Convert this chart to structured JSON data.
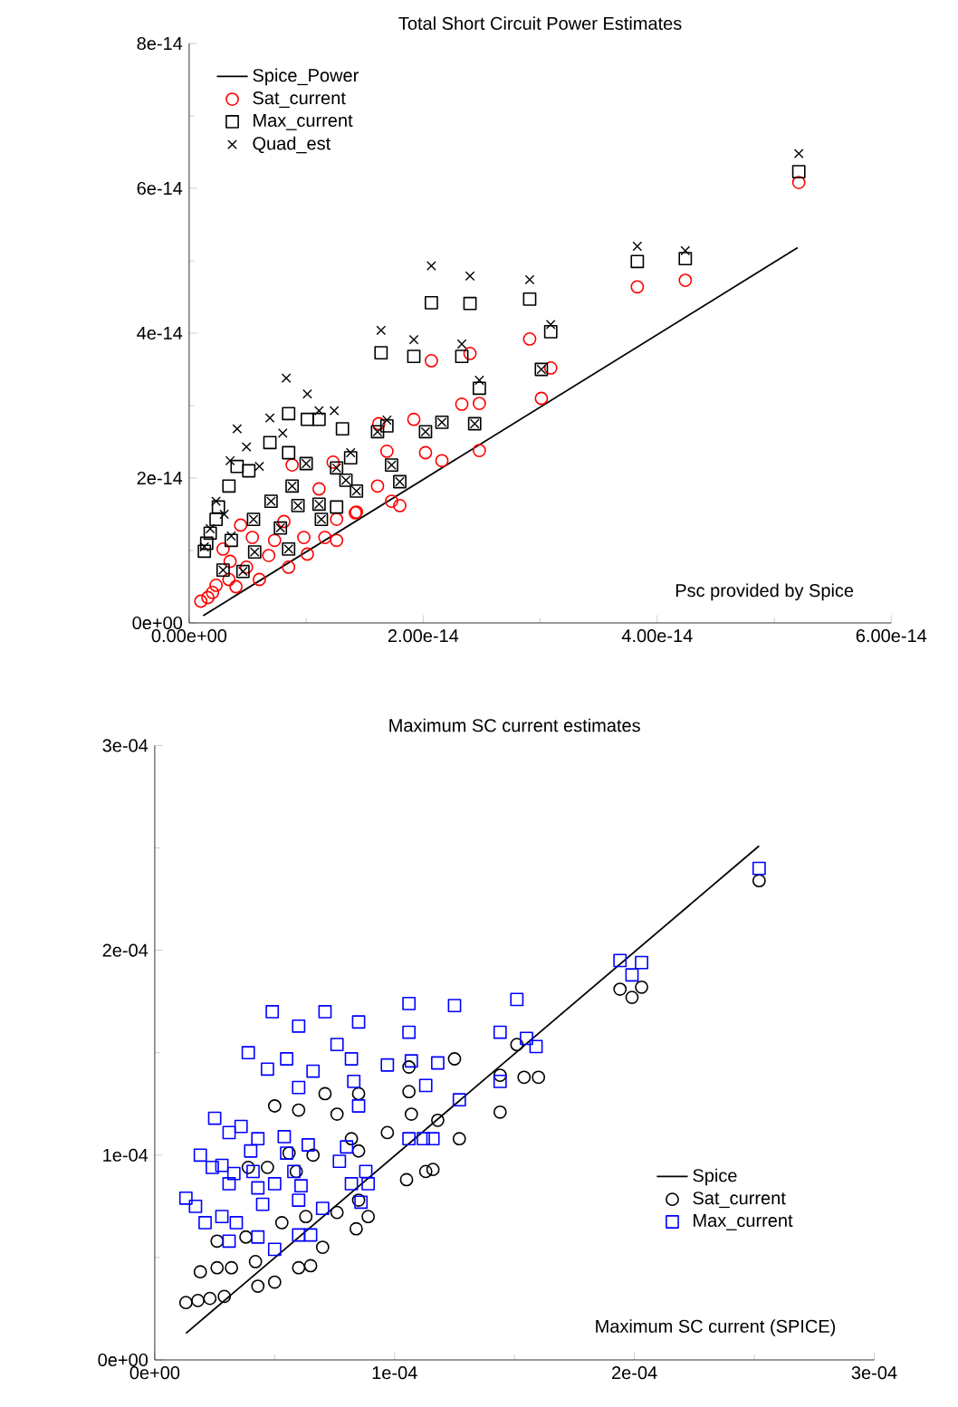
{
  "chart_data": [
    {
      "type": "scatter",
      "title": "Total Short Circuit Power Estimates",
      "xlabel": "Psc provided by Spice",
      "legend": "top left",
      "xlim": [
        0,
        6e-14
      ],
      "ylim": [
        0,
        8e-14
      ],
      "xticks": [
        {
          "value": 0,
          "label": "0.00e+00"
        },
        {
          "value": 2e-14,
          "label": "2.00e-14"
        },
        {
          "value": 4e-14,
          "label": "4.00e-14"
        },
        {
          "value": 6e-14,
          "label": "6.00e-14"
        }
      ],
      "yticks": [
        {
          "value": 0,
          "label": "0e+00"
        },
        {
          "value": 2e-14,
          "label": "2e-14"
        },
        {
          "value": 4e-14,
          "label": "4e-14"
        },
        {
          "value": 6e-14,
          "label": "6e-14"
        },
        {
          "value": 8e-14,
          "label": "8e-14"
        }
      ],
      "series": [
        {
          "name": "Spice_Power",
          "type": "line",
          "line_style": "solid",
          "marker": "none",
          "color": "#000000",
          "x": [
            1.2e-15,
            5.2e-14
          ],
          "values": [
            1e-15,
            5.18e-14
          ]
        },
        {
          "name": "Sat_current",
          "marker": "circle",
          "color": "#ff0000",
          "x": [
            5.21e-14,
            3.83e-14,
            4.24e-14,
            2.91e-14,
            3.09e-14,
            3.01e-14,
            2.07e-14,
            2.4e-14,
            2.33e-14,
            2.48e-14,
            2.48e-14,
            2.16e-14,
            2.02e-14,
            1.92e-14,
            1.69e-14,
            1.61e-14,
            1.73e-14,
            1.8e-14,
            1.23e-14,
            1.43e-14,
            1.62e-14,
            1.6e-15,
            2.3e-15,
            3.4e-15,
            4.9e-15,
            6.8e-15,
            8.5e-15,
            7.3e-15,
            9.8e-15,
            1.16e-14,
            1.26e-14,
            1.42e-14,
            1.11e-14,
            8.8e-15,
            4.4e-15,
            2.9e-15,
            5.4e-15,
            1e-15,
            2e-15,
            4e-15,
            6e-15,
            1.01e-14,
            8.1e-15,
            3.5e-15,
            1.26e-14
          ],
          "values": [
            6.08e-14,
            4.64e-14,
            4.73e-14,
            3.92e-14,
            3.52e-14,
            3.1e-14,
            3.62e-14,
            3.72e-14,
            3.02e-14,
            3.03e-14,
            2.38e-14,
            2.24e-14,
            2.35e-14,
            2.81e-14,
            2.37e-14,
            1.89e-14,
            1.68e-14,
            1.62e-14,
            2.22e-14,
            1.53e-14,
            2.75e-14,
            3.5e-15,
            5.2e-15,
            6e-15,
            7.7e-15,
            9.3e-15,
            7.7e-15,
            1.14e-14,
            1.18e-14,
            1.18e-14,
            1.14e-14,
            1.52e-14,
            1.85e-14,
            2.18e-14,
            1.35e-14,
            1.02e-14,
            1.18e-14,
            3e-15,
            4.2e-15,
            5e-15,
            6e-15,
            9.5e-15,
            1.4e-14,
            8.5e-15,
            1.43e-14
          ]
        },
        {
          "name": "Max_current",
          "marker": "square",
          "color": "#000000",
          "x": [
            5.21e-14,
            3.83e-14,
            4.24e-14,
            2.91e-14,
            3.09e-14,
            3.01e-14,
            2.07e-14,
            2.4e-14,
            2.33e-14,
            1.64e-14,
            1.92e-14,
            2.48e-14,
            2.44e-14,
            2.16e-14,
            2.02e-14,
            1.69e-14,
            1.61e-14,
            1.73e-14,
            1.8e-14,
            1.38e-14,
            1.26e-14,
            1.34e-14,
            1.43e-14,
            1.11e-14,
            1.31e-14,
            8.5e-15,
            1.01e-14,
            6.9e-15,
            8.5e-15,
            1e-14,
            4.1e-15,
            3.4e-15,
            8.8e-15,
            5.1e-15,
            7e-15,
            9.3e-15,
            1.11e-14,
            1.26e-14,
            5.5e-15,
            7.8e-15,
            8.5e-15,
            5.6e-15,
            2.9e-15,
            4.6e-15,
            2.3e-15,
            1.8e-15,
            1.3e-15,
            3.6e-15,
            1.13e-14,
            1.5e-15,
            2.5e-15
          ],
          "values": [
            6.23e-14,
            4.99e-14,
            5.03e-14,
            4.47e-14,
            4.02e-14,
            3.5e-14,
            4.42e-14,
            4.41e-14,
            3.68e-14,
            3.73e-14,
            3.68e-14,
            3.24e-14,
            2.75e-14,
            2.77e-14,
            2.64e-14,
            2.72e-14,
            2.64e-14,
            2.18e-14,
            1.95e-14,
            2.28e-14,
            2.14e-14,
            1.97e-14,
            1.82e-14,
            2.81e-14,
            2.68e-14,
            2.89e-14,
            2.81e-14,
            2.49e-14,
            2.35e-14,
            2.2e-14,
            2.16e-14,
            1.89e-14,
            1.89e-14,
            2.1e-14,
            1.68e-14,
            1.62e-14,
            1.64e-14,
            1.6e-14,
            1.43e-14,
            1.31e-14,
            1.02e-14,
            9.8e-15,
            7.3e-15,
            7.1e-15,
            1.43e-14,
            1.24e-14,
            9.9e-15,
            1.14e-14,
            1.43e-14,
            1.1e-14,
            1.6e-14
          ]
        },
        {
          "name": "Quad_est",
          "marker": "cross",
          "color": "#000000",
          "x": [
            5.21e-14,
            3.83e-14,
            4.24e-14,
            2.91e-14,
            3.09e-14,
            3.01e-14,
            2.07e-14,
            2.4e-14,
            2.33e-14,
            1.64e-14,
            1.92e-14,
            2.48e-14,
            2.44e-14,
            2.16e-14,
            2.02e-14,
            1.69e-14,
            1.61e-14,
            1.73e-14,
            1.8e-14,
            1.38e-14,
            1.26e-14,
            1.34e-14,
            1.43e-14,
            1.11e-14,
            1.24e-14,
            8.3e-15,
            1.01e-14,
            6.9e-15,
            4.1e-15,
            4.9e-15,
            8e-15,
            3.5e-15,
            6e-15,
            2.3e-15,
            1e-14,
            8.8e-15,
            7e-15,
            9.3e-15,
            1.11e-14,
            5.5e-15,
            7.8e-15,
            8.5e-15,
            5.6e-15,
            2.9e-15,
            4.6e-15,
            1.8e-15,
            1.3e-15,
            3.6e-15,
            1.13e-14,
            3e-15
          ],
          "values": [
            6.48e-14,
            5.2e-14,
            5.14e-14,
            4.74e-14,
            4.12e-14,
            3.5e-14,
            4.93e-14,
            4.79e-14,
            3.85e-14,
            4.04e-14,
            3.91e-14,
            3.35e-14,
            2.75e-14,
            2.77e-14,
            2.64e-14,
            2.8e-14,
            2.64e-14,
            2.18e-14,
            1.95e-14,
            2.35e-14,
            2.14e-14,
            1.97e-14,
            1.82e-14,
            2.93e-14,
            2.93e-14,
            3.38e-14,
            3.16e-14,
            2.83e-14,
            2.68e-14,
            2.43e-14,
            2.62e-14,
            2.24e-14,
            2.16e-14,
            1.68e-14,
            2.2e-14,
            1.89e-14,
            1.68e-14,
            1.62e-14,
            1.64e-14,
            1.43e-14,
            1.31e-14,
            1.02e-14,
            9.8e-15,
            7.3e-15,
            7.1e-15,
            1.3e-14,
            1.05e-14,
            1.2e-14,
            1.43e-14,
            1.5e-14
          ]
        }
      ]
    },
    {
      "type": "scatter",
      "title": "Maximum SC current estimates",
      "xlabel": "Maximum SC current (SPICE)",
      "legend": "bottom right",
      "xlim": [
        0,
        0.0003
      ],
      "ylim": [
        0,
        0.0003
      ],
      "xticks": [
        {
          "value": 0,
          "label": "0e+00"
        },
        {
          "value": 0.0001,
          "label": "1e-04"
        },
        {
          "value": 0.0002,
          "label": "2e-04"
        },
        {
          "value": 0.0003,
          "label": "3e-04"
        }
      ],
      "yticks": [
        {
          "value": 0,
          "label": "0e+00"
        },
        {
          "value": 0.0001,
          "label": "1e-04"
        },
        {
          "value": 0.0002,
          "label": "2e-04"
        },
        {
          "value": 0.0003,
          "label": "3e-04"
        }
      ],
      "series": [
        {
          "name": "Spice",
          "type": "line",
          "line_style": "solid",
          "marker": "none",
          "color": "#000000",
          "x": [
            1.3e-05,
            0.000252
          ],
          "values": [
            1.3e-05,
            0.000251
          ]
        },
        {
          "name": "Sat_current",
          "marker": "circle",
          "color": "#000000",
          "x": [
            1.3e-05,
            1.8e-05,
            2.3e-05,
            2.9e-05,
            1.9e-05,
            2.6e-05,
            3.2e-05,
            4.2e-05,
            4.3e-05,
            5e-05,
            2.6e-05,
            3.8e-05,
            5.3e-05,
            6e-05,
            6.5e-05,
            7e-05,
            6.3e-05,
            7.6e-05,
            8.4e-05,
            8.9e-05,
            8.5e-05,
            3.9e-05,
            4.7e-05,
            5.9e-05,
            6.6e-05,
            5.6e-05,
            8.2e-05,
            8.5e-05,
            5e-05,
            6e-05,
            7.6e-05,
            7.1e-05,
            8.5e-05,
            0.000106,
            0.000106,
            0.000107,
            0.000125,
            0.000118,
            9.7e-05,
            0.000127,
            0.000105,
            0.000113,
            0.000116,
            0.000144,
            0.000144,
            0.000151,
            0.000154,
            0.00016,
            0.000194,
            0.000199,
            0.000203,
            0.000252
          ],
          "values": [
            2.8e-05,
            2.9e-05,
            3e-05,
            3.1e-05,
            4.3e-05,
            4.5e-05,
            4.5e-05,
            4.8e-05,
            3.6e-05,
            3.8e-05,
            5.8e-05,
            6e-05,
            6.7e-05,
            4.5e-05,
            4.6e-05,
            5.5e-05,
            7e-05,
            7.2e-05,
            6.4e-05,
            7e-05,
            7.8e-05,
            9.4e-05,
            9.4e-05,
            9.2e-05,
            0.0001,
            0.000101,
            0.000108,
            0.000102,
            0.000124,
            0.000122,
            0.00012,
            0.00013,
            0.00013,
            0.000143,
            0.000131,
            0.00012,
            0.000147,
            0.000117,
            0.000111,
            0.000108,
            8.8e-05,
            9.2e-05,
            9.3e-05,
            0.000121,
            0.000139,
            0.000154,
            0.000138,
            0.000138,
            0.000181,
            0.000177,
            0.000182,
            0.000234
          ]
        },
        {
          "name": "Max_current",
          "marker": "square",
          "color": "#0000ff",
          "x": [
            1.3e-05,
            1.7e-05,
            2.1e-05,
            2.8e-05,
            3.4e-05,
            3.1e-05,
            1.9e-05,
            2.4e-05,
            2.8e-05,
            3.3e-05,
            3.1e-05,
            2.5e-05,
            3.1e-05,
            3.6e-05,
            4.3e-05,
            4e-05,
            4.1e-05,
            4.3e-05,
            4.5e-05,
            5e-05,
            4.3e-05,
            5e-05,
            5.4e-05,
            5.5e-05,
            5.8e-05,
            6.1e-05,
            6e-05,
            6.4e-05,
            6e-05,
            6.5e-05,
            7e-05,
            7.7e-05,
            8e-05,
            8.2e-05,
            8.6e-05,
            8.8e-05,
            8.9e-05,
            3.9e-05,
            4.7e-05,
            5.5e-05,
            4.9e-05,
            6e-05,
            7.1e-05,
            8.5e-05,
            7.6e-05,
            8.2e-05,
            6.6e-05,
            6e-05,
            8.3e-05,
            8.5e-05,
            9.7e-05,
            0.000106,
            0.000106,
            0.000107,
            0.000113,
            0.000118,
            0.000125,
            0.000127,
            0.000106,
            0.000112,
            0.000116,
            0.000144,
            0.000144,
            0.000151,
            0.000155,
            0.000159,
            0.000194,
            0.000203,
            0.000199,
            0.000252
          ],
          "values": [
            7.9e-05,
            7.5e-05,
            6.7e-05,
            7e-05,
            6.7e-05,
            5.8e-05,
            0.0001,
            9.4e-05,
            9.5e-05,
            9.1e-05,
            8.6e-05,
            0.000118,
            0.000111,
            0.000114,
            0.000108,
            0.000102,
            9.2e-05,
            8.4e-05,
            7.6e-05,
            8.6e-05,
            6e-05,
            5.4e-05,
            0.000109,
            0.000101,
            9.2e-05,
            8.5e-05,
            7.8e-05,
            0.000105,
            6.1e-05,
            6.1e-05,
            7.4e-05,
            9.7e-05,
            0.000104,
            8.6e-05,
            7.7e-05,
            9.2e-05,
            8.6e-05,
            0.00015,
            0.000142,
            0.000147,
            0.00017,
            0.000163,
            0.00017,
            0.000165,
            0.000154,
            0.000147,
            0.000141,
            0.000133,
            0.000136,
            0.000124,
            0.000144,
            0.000174,
            0.00016,
            0.000146,
            0.000134,
            0.000145,
            0.000173,
            0.000127,
            0.000108,
            0.000108,
            0.000108,
            0.00016,
            0.000136,
            0.000176,
            0.000157,
            0.000153,
            0.000195,
            0.000194,
            0.000188,
            0.00024
          ]
        }
      ]
    }
  ]
}
